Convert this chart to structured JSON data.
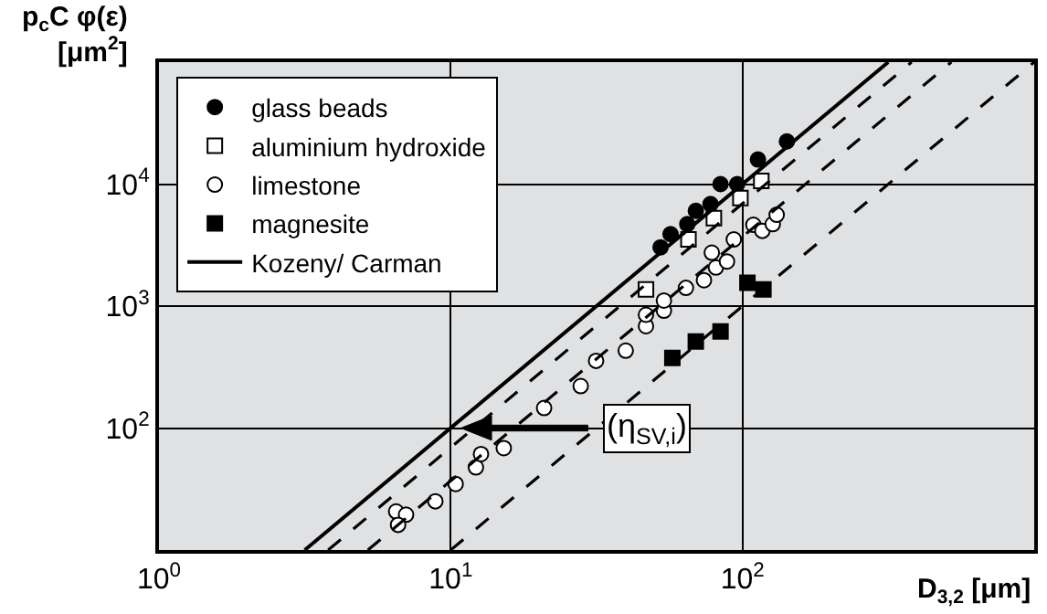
{
  "chart_data": {
    "type": "scatter",
    "ylabel": "p$_{c}$C φ(ε)\n[μm$^{2}$]",
    "xlabel": "D$_{3,2}$ [μm]",
    "log": "xy",
    "xlim": [
      1,
      1000
    ],
    "ylim": [
      10,
      100000
    ],
    "xticks": [
      {
        "value": 1,
        "label": "10$^{0}$"
      },
      {
        "value": 10,
        "label": "10$^{1}$"
      },
      {
        "value": 100,
        "label": "10$^{2}$"
      }
    ],
    "yticks": [
      {
        "value": 100,
        "label": "10$^{2}$"
      },
      {
        "value": 1000,
        "label": "10$^{3}$"
      },
      {
        "value": 10000,
        "label": "10$^{4}$"
      }
    ],
    "grid": true,
    "legend": "top left",
    "annotations": [
      "(η$_{SV,i}$)"
    ],
    "series": [
      {
        "name": "glass beads",
        "color": "#000000",
        "marker": "circle",
        "x": [
          52.4,
          56.7,
          64.7,
          69.2,
          77.7,
          84.1,
          95.9,
          113,
          142
        ],
        "values": [
          3030,
          3890,
          4700,
          6040,
          6860,
          10000,
          10000,
          15900,
          22400
        ]
      },
      {
        "name": "aluminium hydroxide",
        "color": "#000000",
        "marker": "square-open",
        "x": [
          46.7,
          65.3,
          79.8,
          98.4,
          116
        ],
        "values": [
          1370,
          3520,
          5260,
          7680,
          10600
        ]
      },
      {
        "name": "limestone",
        "color": "#000000",
        "marker": "circle-open",
        "x": [
          6.5,
          7.03,
          6.6,
          8.86,
          10.4,
          12.2,
          12.7,
          15.2,
          20.9,
          27.9,
          31.5,
          39.8,
          46.7,
          46.7,
          53.8,
          53.8,
          64.0,
          73.8,
          78.5,
          81.1,
          88.5,
          93.4,
          109,
          117,
          127,
          131
        ],
        "values": [
          20.7,
          19.5,
          16.1,
          25.1,
          34.8,
          47.6,
          61.2,
          68.5,
          146,
          221,
          356,
          431,
          685,
          849,
          916,
          1110,
          1410,
          1630,
          2740,
          2070,
          2320,
          3520,
          4640,
          4140,
          4700,
          5610
        ]
      },
      {
        "name": "magnesite",
        "color": "#000000",
        "marker": "square",
        "x": [
          57.5,
          69.2,
          84.1,
          104,
          118
        ],
        "values": [
          375,
          513,
          620,
          1550,
          1370
        ]
      },
      {
        "name": "Kozeny/ Carman",
        "type": "line",
        "color": "#000000",
        "line_style": "solid",
        "marker": "none",
        "x": [
          3.16,
          316
        ],
        "values": [
          10,
          100000
        ]
      },
      {
        "type": "line",
        "color": "#000000",
        "line_style": "dashed",
        "marker": "none",
        "x": [
          3.8,
          380
        ],
        "values": [
          10,
          100000
        ]
      },
      {
        "type": "line",
        "color": "#000000",
        "line_style": "dashed",
        "marker": "none",
        "x": [
          5.2,
          520
        ],
        "values": [
          10,
          100000
        ]
      },
      {
        "type": "line",
        "color": "#000000",
        "line_style": "dashed",
        "marker": "none",
        "x": [
          10,
          1000
        ],
        "values": [
          10,
          100000
        ]
      }
    ]
  }
}
